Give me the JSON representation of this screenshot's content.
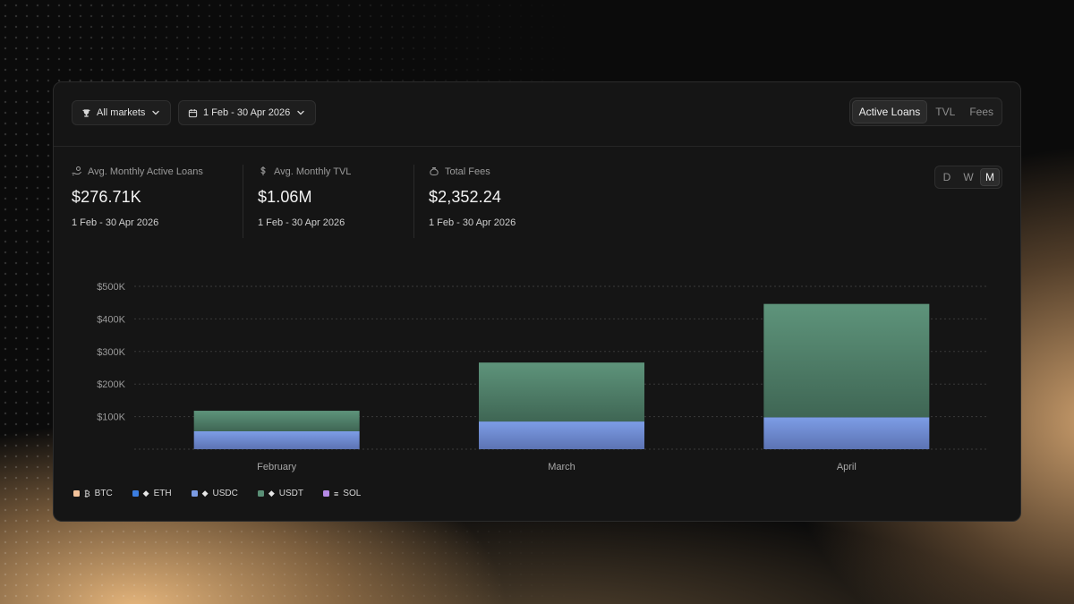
{
  "toolbar": {
    "markets_label": "All markets",
    "date_label": "1 Feb - 30 Apr 2026",
    "tabs": [
      {
        "label": "Active Loans",
        "active": true
      },
      {
        "label": "TVL",
        "active": false
      },
      {
        "label": "Fees",
        "active": false
      }
    ]
  },
  "stats": [
    {
      "label": "Avg. Monthly Active Loans",
      "value": "$276.71K",
      "range": "1 Feb - 30 Apr 2026",
      "icon": "hand-coins-icon"
    },
    {
      "label": "Avg. Monthly TVL",
      "value": "$1.06M",
      "range": "1 Feb - 30 Apr 2026",
      "icon": "dollar-icon"
    },
    {
      "label": "Total Fees",
      "value": "$2,352.24",
      "range": "1 Feb - 30 Apr 2026",
      "icon": "money-bag-icon"
    }
  ],
  "period": {
    "options": [
      "D",
      "W",
      "M"
    ],
    "active": "M"
  },
  "chart_data": {
    "type": "bar",
    "stacked": true,
    "categories": [
      "February",
      "March",
      "April"
    ],
    "series": [
      {
        "name": "BTC",
        "color": "#f2c29a",
        "values": [
          0,
          0,
          0
        ]
      },
      {
        "name": "ETH",
        "color": "#3b7de0",
        "values": [
          0,
          0,
          0
        ]
      },
      {
        "name": "USDC",
        "color": "#7b9be3",
        "values": [
          55000,
          85000,
          98000
        ]
      },
      {
        "name": "USDT",
        "color": "#5a8f76",
        "values": [
          63000,
          181000,
          348000
        ]
      },
      {
        "name": "SOL",
        "color": "#b58ae6",
        "values": [
          0,
          0,
          0
        ]
      }
    ],
    "yticks": [
      "$100K",
      "$200K",
      "$300K",
      "$400K",
      "$500K"
    ],
    "ylim": [
      0,
      500000
    ],
    "grid": true,
    "legend_position": "bottom-left"
  }
}
